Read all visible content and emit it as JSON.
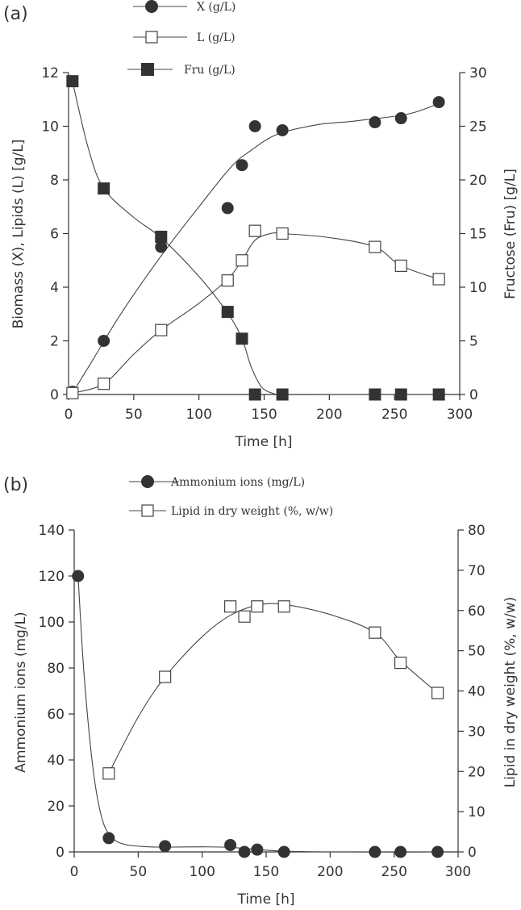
{
  "chart_data": [
    {
      "panel": "(a)",
      "type": "scatter",
      "xlabel": "Time [h]",
      "ylabel_left": "Biomass (X), Lipids (L) [g/L]",
      "ylabel_right": "Fructose (Fru) [g/L]",
      "xlim": [
        0,
        300
      ],
      "ylim_left": [
        0,
        12
      ],
      "ylim_right": [
        0,
        30
      ],
      "x_ticks": [
        "0",
        "50",
        "100",
        "150",
        "200",
        "250",
        "300"
      ],
      "y_left_ticks": [
        "0",
        "2",
        "4",
        "6",
        "8",
        "10",
        "12"
      ],
      "y_right_ticks": [
        "0",
        "5",
        "10",
        "15",
        "20",
        "25",
        "30"
      ],
      "grid": false,
      "legend_position": "top",
      "series": [
        {
          "name": "X (g/L)",
          "marker": "filled-circle",
          "axis": "left",
          "x": [
            3,
            27,
            71,
            122,
            133,
            143,
            164,
            235,
            255,
            284
          ],
          "y": [
            0.1,
            2.0,
            5.5,
            6.95,
            8.55,
            10.0,
            9.85,
            10.15,
            10.3,
            10.9
          ]
        },
        {
          "name": "L (g/L)",
          "marker": "open-square",
          "axis": "left",
          "x": [
            3,
            27,
            71,
            122,
            133,
            143,
            164,
            235,
            255,
            284
          ],
          "y": [
            0.05,
            0.4,
            2.4,
            4.25,
            5.0,
            6.1,
            6.0,
            5.5,
            4.8,
            4.3
          ]
        },
        {
          "name": "Fru (g/L)",
          "marker": "filled-square",
          "axis": "right",
          "x": [
            3,
            27,
            71,
            122,
            133,
            143,
            164,
            235,
            255,
            284
          ],
          "y": [
            29.2,
            19.2,
            14.7,
            7.7,
            5.2,
            0.0,
            0.0,
            0.0,
            0.0,
            0.0
          ]
        }
      ],
      "fit_curves": [
        {
          "series": "X (g/L)",
          "x": [
            3,
            20,
            40,
            70,
            100,
            125,
            140,
            160,
            190,
            220,
            260,
            284
          ],
          "y": [
            0.05,
            1.4,
            3.0,
            5.1,
            7.0,
            8.5,
            9.1,
            9.7,
            10.05,
            10.2,
            10.45,
            10.85
          ]
        },
        {
          "series": "L (g/L)",
          "x": [
            3,
            27,
            50,
            71,
            100,
            122,
            133,
            143,
            155,
            164,
            200,
            235,
            255,
            284
          ],
          "y": [
            0.05,
            0.4,
            1.5,
            2.4,
            3.4,
            4.3,
            5.0,
            5.75,
            6.0,
            6.0,
            5.85,
            5.5,
            4.8,
            4.3
          ]
        },
        {
          "series": "Fru (g/L)",
          "x": [
            3,
            15,
            27,
            50,
            71,
            100,
            122,
            133,
            140,
            148,
            157,
            164,
            200,
            284
          ],
          "y": [
            29.2,
            23.0,
            19.2,
            16.5,
            14.6,
            11.0,
            7.6,
            5.2,
            2.6,
            0.7,
            0.1,
            0.0,
            0.0,
            0.0
          ]
        }
      ]
    },
    {
      "panel": "(b)",
      "type": "scatter",
      "xlabel": "Time [h]",
      "ylabel_left": "Ammonium ions (mg/L)",
      "ylabel_right": "Lipid in dry weight (%, w/w)",
      "xlim": [
        0,
        300
      ],
      "ylim_left": [
        0,
        140
      ],
      "ylim_right": [
        0,
        80
      ],
      "x_ticks": [
        "0",
        "50",
        "100",
        "150",
        "200",
        "250",
        "300"
      ],
      "y_left_ticks": [
        "0",
        "20",
        "40",
        "60",
        "80",
        "100",
        "120",
        "140"
      ],
      "y_right_ticks": [
        "0",
        "10",
        "20",
        "30",
        "40",
        "50",
        "60",
        "70",
        "80"
      ],
      "grid": false,
      "legend_position": "top",
      "series": [
        {
          "name": "Ammonium ions (mg/L)",
          "marker": "filled-circle",
          "axis": "left",
          "x": [
            3,
            27,
            71,
            122,
            133,
            143,
            164,
            235,
            255,
            284
          ],
          "y": [
            120,
            6,
            2.5,
            3,
            0,
            1,
            0,
            0,
            0,
            0
          ]
        },
        {
          "name": "Lipid in dry weight (%, w/w)",
          "marker": "open-square",
          "axis": "right",
          "x": [
            27,
            71,
            122,
            133,
            143,
            164,
            235,
            255,
            284
          ],
          "y": [
            19.5,
            43.5,
            61,
            58.5,
            61,
            61,
            54.5,
            47,
            39.5
          ]
        }
      ],
      "fit_curves": [
        {
          "series": "Ammonium ions (mg/L)",
          "x": [
            3,
            8,
            15,
            22,
            30,
            40,
            55,
            71,
            100,
            122,
            140,
            164,
            200,
            284
          ],
          "y": [
            120,
            75,
            35,
            14,
            6,
            3.2,
            2.3,
            2.1,
            2.2,
            2.0,
            1.2,
            0.3,
            0.0,
            0.0
          ]
        },
        {
          "series": "Lipid in dry weight (%, w/w)",
          "x": [
            27,
            50,
            71,
            100,
            122,
            143,
            164,
            200,
            235,
            255,
            284
          ],
          "y": [
            19.5,
            33.5,
            43.5,
            53.5,
            58.8,
            61.3,
            61.5,
            59.0,
            54.5,
            47.5,
            39.5
          ]
        }
      ]
    }
  ]
}
